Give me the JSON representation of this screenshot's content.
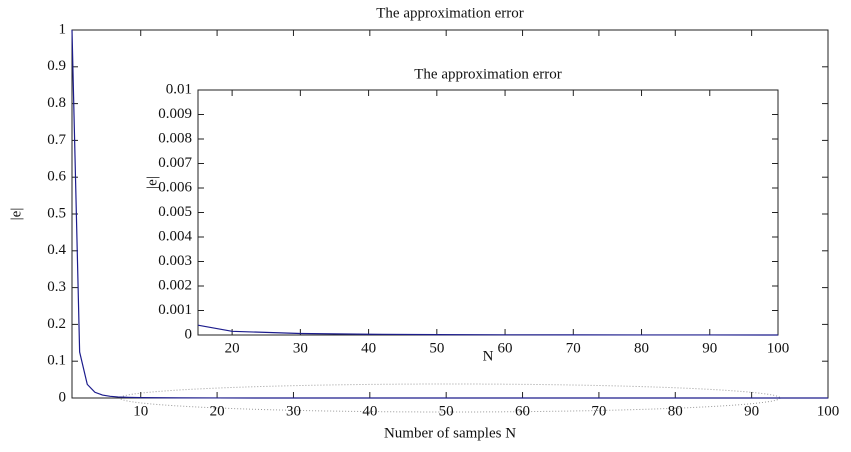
{
  "chart_data": [
    {
      "type": "line",
      "title": "The approximation error",
      "xlabel": "Number of samples N",
      "ylabel": "|e|",
      "x": [
        1,
        2,
        3,
        4,
        5,
        6,
        7,
        8,
        10,
        15,
        20,
        30,
        40,
        50,
        60,
        70,
        80,
        90,
        100
      ],
      "values": [
        1,
        0.125,
        0.037,
        0.0156,
        0.008,
        0.0046,
        0.0029,
        0.002,
        0.001,
        0.0003,
        0.000125,
        3.7e-05,
        1.56e-05,
        8e-06,
        4.6e-06,
        2.9e-06,
        2e-06,
        1.4e-06,
        1e-06
      ],
      "color": "#1c1c8c",
      "xlim": [
        1,
        100
      ],
      "xticks": [
        10,
        20,
        30,
        40,
        50,
        60,
        70,
        80,
        90,
        100
      ],
      "ylim": [
        0,
        1
      ],
      "yticks": [
        0,
        0.1,
        0.2,
        0.3,
        0.4,
        0.5,
        0.6,
        0.7,
        0.8,
        0.9,
        1
      ],
      "grid": false
    },
    {
      "type": "line",
      "title": "The approximation error",
      "xlabel": "N",
      "ylabel": "|e|",
      "x": [
        15,
        20,
        30,
        40,
        50,
        60,
        70,
        80,
        90,
        100
      ],
      "values": [
        0.0004,
        0.00015,
        6e-05,
        3e-05,
        1.5e-05,
        8e-06,
        5e-06,
        3e-06,
        2e-06,
        1e-06
      ],
      "color": "#1c1c8c",
      "xlim": [
        15,
        100
      ],
      "xticks": [
        20,
        30,
        40,
        50,
        60,
        70,
        80,
        90,
        100
      ],
      "ylim": [
        0,
        0.01
      ],
      "yticks": [
        0,
        0.001,
        0.002,
        0.003,
        0.004,
        0.005,
        0.006,
        0.007,
        0.008,
        0.009,
        0.01
      ],
      "grid": false
    }
  ]
}
